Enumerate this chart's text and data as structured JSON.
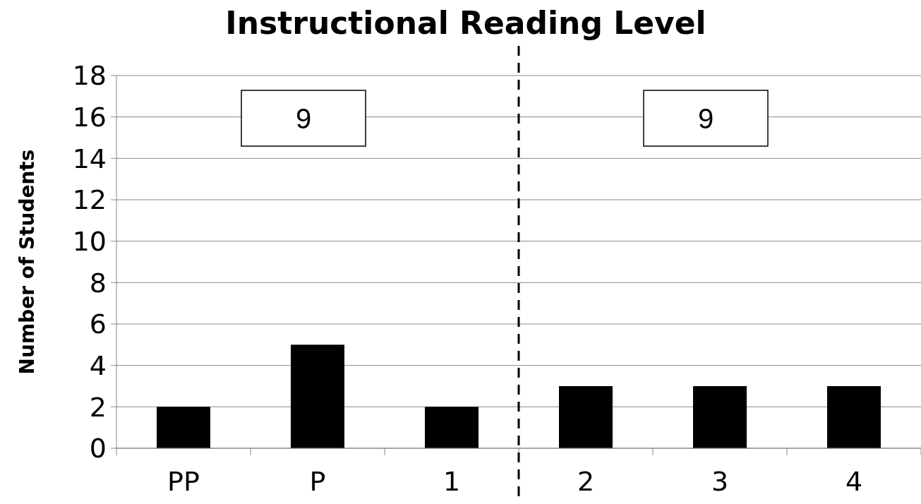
{
  "chart_data": {
    "type": "bar",
    "title": "Instructional Reading Level",
    "ylabel": "Number of Students",
    "categories": [
      "PP",
      "P",
      "1",
      "2",
      "3",
      "4"
    ],
    "values": [
      2,
      5,
      2,
      3,
      3,
      3
    ],
    "color": "#000000",
    "ylim": [
      0,
      18
    ],
    "yticks": [
      0,
      2,
      4,
      6,
      8,
      10,
      12,
      14,
      16,
      18
    ],
    "grid": "y",
    "annotations": [
      "9",
      "9"
    ]
  }
}
